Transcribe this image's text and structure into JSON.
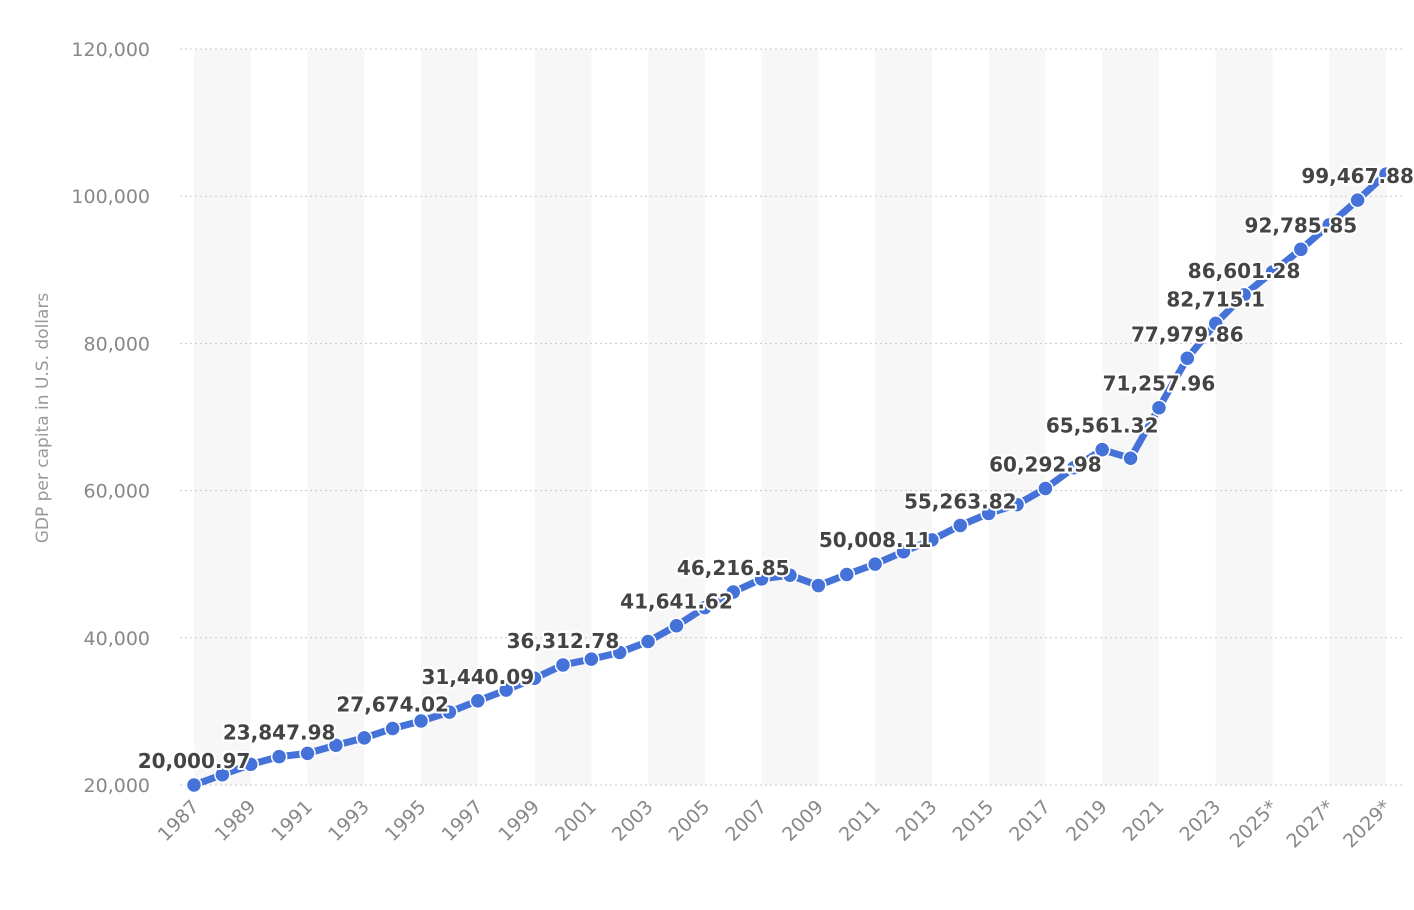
{
  "chart_data": {
    "type": "line",
    "title": "",
    "xlabel": "",
    "ylabel": "GDP per capita in U.S. dollars",
    "ylim": [
      20000,
      120000
    ],
    "yticks": [
      "20,000",
      "40,000",
      "60,000",
      "80,000",
      "100,000",
      "120,000"
    ],
    "ytick_values": [
      20000,
      40000,
      60000,
      80000,
      100000,
      120000
    ],
    "grid": true,
    "line_color": "#4472d8",
    "x": [
      "1987",
      "1988",
      "1989",
      "1990",
      "1991",
      "1992",
      "1993",
      "1994",
      "1995",
      "1996",
      "1997",
      "1998",
      "1999",
      "2000",
      "2001",
      "2002",
      "2003",
      "2004",
      "2005",
      "2006",
      "2007",
      "2008",
      "2009",
      "2010",
      "2011",
      "2012",
      "2013",
      "2014",
      "2015",
      "2016",
      "2017",
      "2018",
      "2019",
      "2020",
      "2021",
      "2022",
      "2023",
      "2024",
      "2025*",
      "2026*",
      "2027*",
      "2028*",
      "2029*"
    ],
    "x_tick_labels": [
      "1987",
      "1989",
      "1991",
      "1993",
      "1995",
      "1997",
      "1999",
      "2001",
      "2003",
      "2005",
      "2007",
      "2009",
      "2011",
      "2013",
      "2015",
      "2017",
      "2019",
      "2021",
      "2023",
      "2025*",
      "2027*",
      "2029*"
    ],
    "values": [
      20000.97,
      21400,
      22800,
      23847.98,
      24300,
      25400,
      26400,
      27674.02,
      28700,
      29900,
      31440.09,
      32900,
      34500,
      36312.78,
      37100,
      38000,
      39500,
      41641.62,
      44100,
      46216.85,
      48000,
      48500,
      47100,
      48600,
      50008.11,
      51700,
      53300,
      55263.82,
      56900,
      58100,
      60292.98,
      63100,
      65561.32,
      64400,
      71257.96,
      77979.86,
      82715.1,
      86601.28,
      89700,
      92785.85,
      96100,
      99467.88,
      103000
    ],
    "data_labels": [
      {
        "x": "1987",
        "text": "20,000.97"
      },
      {
        "x": "1990",
        "text": "23,847.98"
      },
      {
        "x": "1994",
        "text": "27,674.02"
      },
      {
        "x": "1997",
        "text": "31,440.09"
      },
      {
        "x": "2000",
        "text": "36,312.78"
      },
      {
        "x": "2004",
        "text": "41,641.62"
      },
      {
        "x": "2006",
        "text": "46,216.85"
      },
      {
        "x": "2011",
        "text": "50,008.11"
      },
      {
        "x": "2014",
        "text": "55,263.82"
      },
      {
        "x": "2017",
        "text": "60,292.98"
      },
      {
        "x": "2019",
        "text": "65,561.32"
      },
      {
        "x": "2021",
        "text": "71,257.96"
      },
      {
        "x": "2022",
        "text": "77,979.86"
      },
      {
        "x": "2023",
        "text": "82,715.1"
      },
      {
        "x": "2024",
        "text": "86,601.28"
      },
      {
        "x": "2026*",
        "text": "92,785.85"
      },
      {
        "x": "2028*",
        "text": "99,467.88"
      }
    ]
  }
}
